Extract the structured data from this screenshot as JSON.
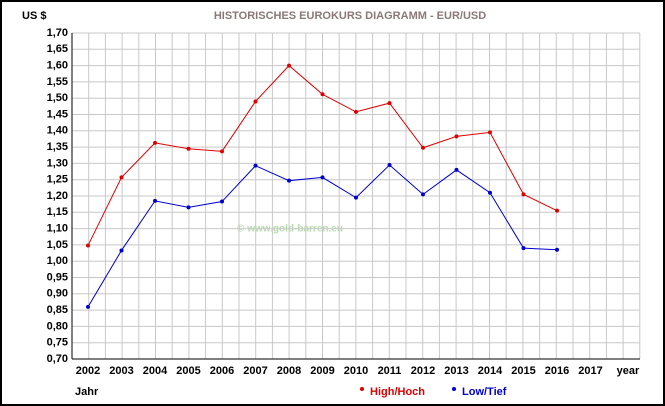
{
  "chart_data": {
    "type": "line",
    "title": "HISTORISCHES EUROKURS DIAGRAMM -  EUR/USD",
    "y_axis_label": "US $",
    "x_axis_label": "year",
    "x_axis_title": "Jahr",
    "watermark": "© www.gold-barren.eu",
    "categories": [
      "2002",
      "2003",
      "2004",
      "2005",
      "2006",
      "2007",
      "2008",
      "2009",
      "2010",
      "2011",
      "2012",
      "2013",
      "2014",
      "2015",
      "2016",
      "2017"
    ],
    "series": [
      {
        "name": "High/Hoch",
        "color": "#e00000",
        "values": [
          1.048,
          1.257,
          1.363,
          1.345,
          1.337,
          1.49,
          1.6,
          1.512,
          1.458,
          1.485,
          1.348,
          1.383,
          1.395,
          1.205,
          1.155,
          null
        ]
      },
      {
        "name": "Low/Tief",
        "color": "#0000d0",
        "values": [
          0.86,
          1.033,
          1.185,
          1.165,
          1.183,
          1.293,
          1.247,
          1.257,
          1.195,
          1.295,
          1.205,
          1.28,
          1.21,
          1.04,
          1.035,
          null
        ]
      }
    ],
    "ylim": [
      0.7,
      1.7
    ],
    "yticks": [
      {
        "value": 0.7,
        "label": "0,70"
      },
      {
        "value": 0.75,
        "label": "0,75"
      },
      {
        "value": 0.8,
        "label": "0,80"
      },
      {
        "value": 0.85,
        "label": "0,85"
      },
      {
        "value": 0.9,
        "label": "0,90"
      },
      {
        "value": 0.95,
        "label": "0,95"
      },
      {
        "value": 1.0,
        "label": "1,00"
      },
      {
        "value": 1.05,
        "label": "1,05"
      },
      {
        "value": 1.1,
        "label": "1,10"
      },
      {
        "value": 1.15,
        "label": "1,15"
      },
      {
        "value": 1.2,
        "label": "1,20"
      },
      {
        "value": 1.25,
        "label": "1,25"
      },
      {
        "value": 1.3,
        "label": "1,30"
      },
      {
        "value": 1.35,
        "label": "1,35"
      },
      {
        "value": 1.4,
        "label": "1,40"
      },
      {
        "value": 1.45,
        "label": "1,45"
      },
      {
        "value": 1.5,
        "label": "1,50"
      },
      {
        "value": 1.55,
        "label": "1,55"
      },
      {
        "value": 1.6,
        "label": "1,60"
      },
      {
        "value": 1.65,
        "label": "1,65"
      },
      {
        "value": 1.7,
        "label": "1,70"
      }
    ],
    "grid": true
  }
}
